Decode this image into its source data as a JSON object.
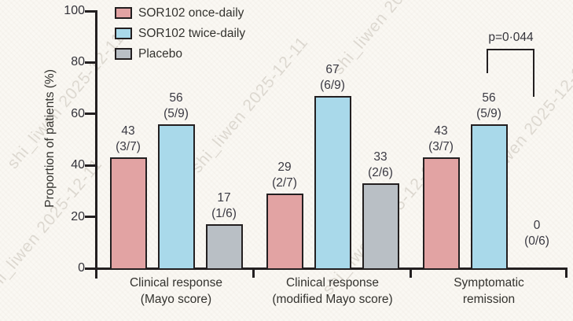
{
  "watermark": {
    "text": "shi_liwen 2025-12-11"
  },
  "chart_data": {
    "type": "bar",
    "title": "",
    "xlabel": "",
    "ylabel": "Proportion of patients (%)",
    "ylim": [
      0,
      100
    ],
    "yticks": [
      0,
      20,
      40,
      60,
      80,
      100
    ],
    "grid": false,
    "legend_position": "top-left",
    "categories": [
      "Clinical response (Mayo score)",
      "Clinical response (modified Mayo score)",
      "Symptomatic remission"
    ],
    "category_lines": [
      [
        "Clinical response",
        "(Mayo score)"
      ],
      [
        "Clinical response",
        "(modified Mayo score)"
      ],
      [
        "Symptomatic",
        "remission"
      ]
    ],
    "series": [
      {
        "name": "SOR102 once-daily",
        "color": "#e2a3a3",
        "values": [
          43,
          29,
          43
        ],
        "fractions": [
          "3/7",
          "2/7",
          "3/7"
        ]
      },
      {
        "name": "SOR102 twice-daily",
        "color": "#a9d9ea",
        "values": [
          56,
          67,
          56
        ],
        "fractions": [
          "5/9",
          "6/9",
          "5/9"
        ]
      },
      {
        "name": "Placebo",
        "color": "#b9bfc5",
        "values": [
          17,
          33,
          0
        ],
        "fractions": [
          "1/6",
          "2/6",
          "0/6"
        ]
      }
    ],
    "annotation": {
      "text": "p=0·044",
      "category": "Symptomatic remission",
      "between": [
        "SOR102 twice-daily",
        "Placebo"
      ]
    },
    "axis_color": "#231f20"
  }
}
